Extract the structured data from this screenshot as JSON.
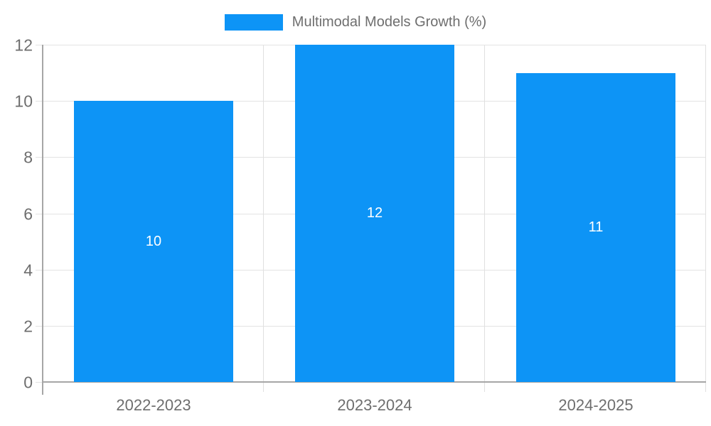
{
  "chart_data": {
    "type": "bar",
    "categories": [
      "2022-2023",
      "2023-2024",
      "2024-2025"
    ],
    "values": [
      10,
      12,
      11
    ],
    "series_label": "Multimodal Models Growth (%)",
    "title": "",
    "xlabel": "",
    "ylabel": "",
    "ylim": [
      0,
      12
    ],
    "yticks": [
      0,
      2,
      4,
      6,
      8,
      10,
      12
    ],
    "grid": true,
    "legend_position": "top",
    "data_labels_shown": true
  },
  "legend": {
    "label": "Multimodal Models Growth (%)"
  },
  "colors": {
    "bar": "#0d94f6",
    "grid": "#e3e3e3",
    "grid_vertical": "#e0e0e0",
    "axis": "#a6a6a6",
    "tick_text": "#6e6e6e",
    "data_label": "#ffffff",
    "background": "#ffffff"
  }
}
